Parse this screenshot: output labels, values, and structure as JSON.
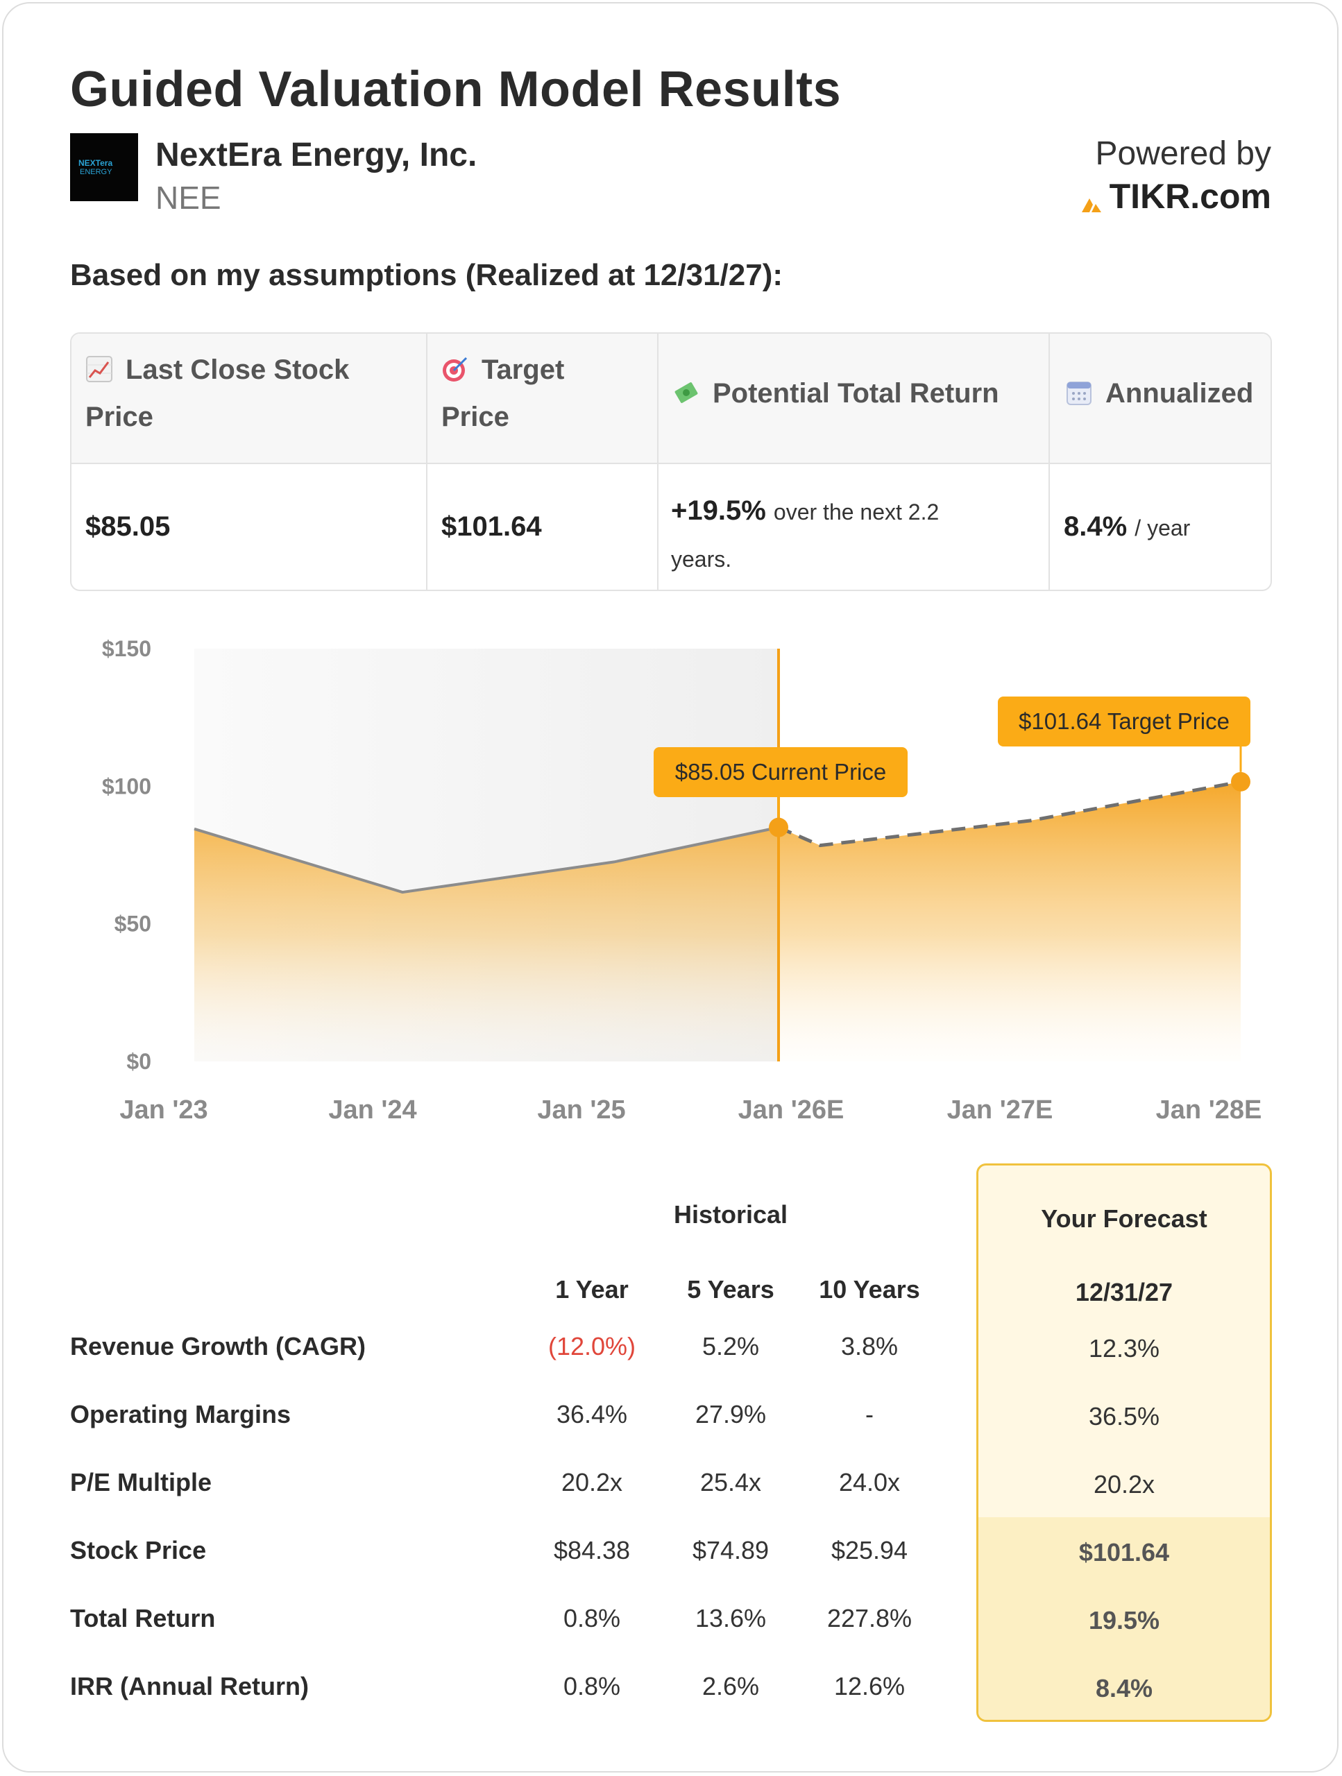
{
  "header": {
    "title": "Guided Valuation Model Results",
    "company": "NextEra Energy, Inc.",
    "ticker": "NEE",
    "logo_text_1": "NEXTera",
    "logo_text_2": "ENERGY",
    "powered_by": "Powered by",
    "brand": "TIKR.com",
    "assumption_line": "Based on my assumptions (Realized at 12/31/27):"
  },
  "stats": {
    "last_close_label_1": "Last Close Stock",
    "last_close_label_2": "Price",
    "target_label_1": "Target",
    "target_label_2": "Price",
    "potential_label": "Potential Total Return",
    "annualized_label": "Annualized",
    "last_close_value": "$85.05",
    "target_value": "$101.64",
    "potential_value": "+19.5%",
    "potential_suffix_1": "over the next 2.2",
    "potential_suffix_2": "years.",
    "annualized_value": "8.4%",
    "annualized_suffix": "/ year"
  },
  "chart_data": {
    "type": "area",
    "title": "",
    "xlabel": "",
    "ylabel": "",
    "ylim": [
      0,
      150
    ],
    "yticks": [
      "$150",
      "$100",
      "$50",
      "$0"
    ],
    "xticks": [
      "Jan '23",
      "Jan '24",
      "Jan '25",
      "Jan '26E",
      "Jan '27E",
      "Jan '28E"
    ],
    "grid": false,
    "historical": {
      "x": [
        "Jan '23",
        "Jan '24",
        "Jan '25",
        "Dec '25"
      ],
      "values": [
        84.5,
        61.5,
        72.5,
        85.05
      ]
    },
    "forecast": {
      "x": [
        "Dec '25",
        "Jan '26E",
        "Jan '27E",
        "Jan '28E"
      ],
      "values": [
        85.05,
        78.5,
        87.5,
        101.64
      ]
    },
    "annotations": {
      "current": "$85.05 Current Price",
      "target": "$101.64 Target Price"
    },
    "colors": {
      "accent": "#f4a018",
      "line": "#8c8c8c",
      "tooltip": "#fbab16"
    }
  },
  "table": {
    "historical_label": "Historical",
    "forecast_label": "Your Forecast",
    "columns": [
      "1 Year",
      "5 Years",
      "10 Years"
    ],
    "forecast_date": "12/31/27",
    "rows": [
      {
        "label": "Revenue Growth (CAGR)",
        "values": [
          "(12.0%)",
          "5.2%",
          "3.8%"
        ],
        "forecast": "12.3%"
      },
      {
        "label": "Operating Margins",
        "values": [
          "36.4%",
          "27.9%",
          "-"
        ],
        "forecast": "36.5%"
      },
      {
        "label": "P/E Multiple",
        "values": [
          "20.2x",
          "25.4x",
          "24.0x"
        ],
        "forecast": "20.2x"
      },
      {
        "label": "Stock Price",
        "values": [
          "$84.38",
          "$74.89",
          "$25.94"
        ],
        "forecast": "$101.64"
      },
      {
        "label": "Total Return",
        "values": [
          "0.8%",
          "13.6%",
          "227.8%"
        ],
        "forecast": "19.5%"
      },
      {
        "label": "IRR (Annual Return)",
        "values": [
          "0.8%",
          "2.6%",
          "12.6%"
        ],
        "forecast": "8.4%"
      }
    ]
  }
}
